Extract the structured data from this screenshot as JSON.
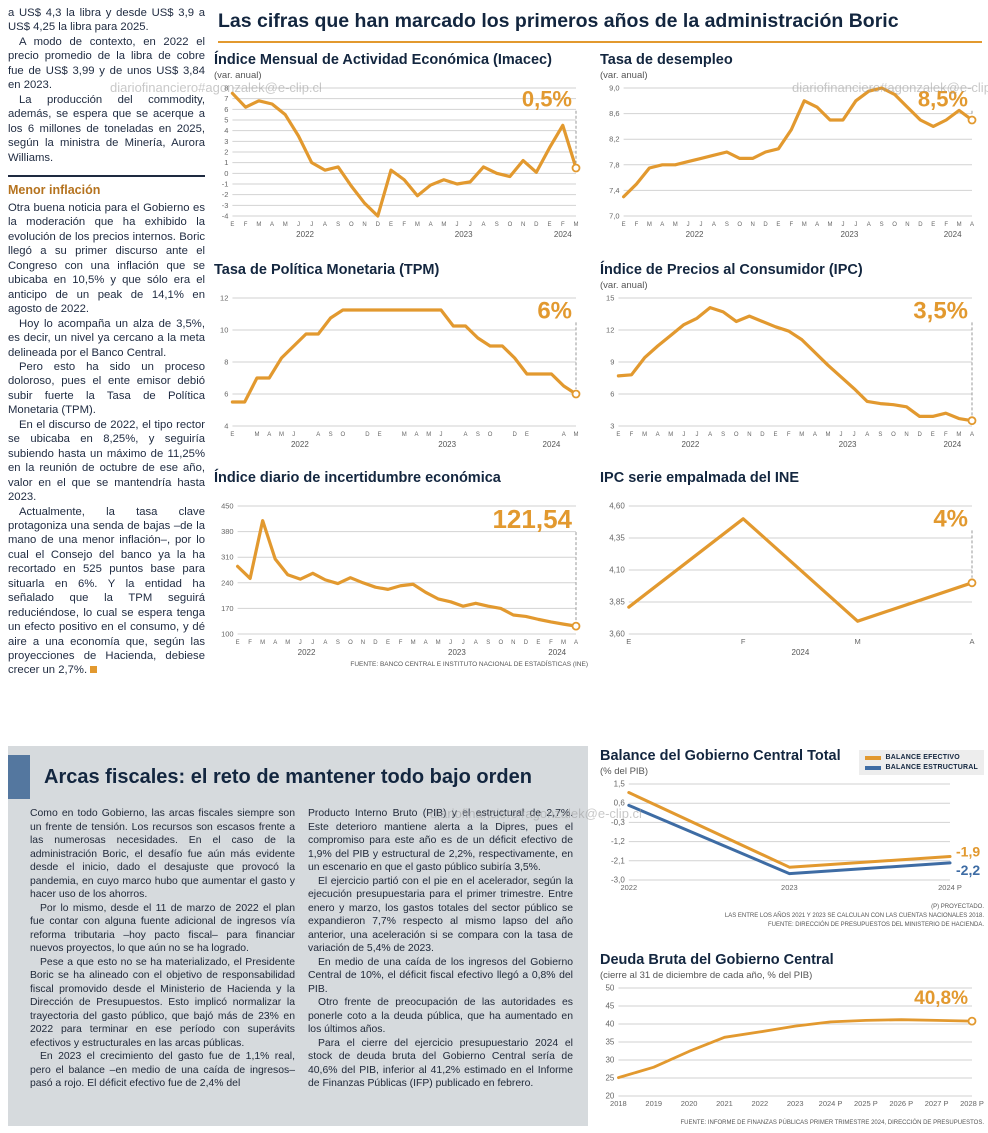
{
  "watermark": "diariofinanciero#agonzalek@e-clip.cl",
  "colors": {
    "accent_orange": "#E2992F",
    "navy": "#13263F",
    "steel_blue": "#3E6CA4",
    "panel_gray": "#D6DADD",
    "subhead_brown": "#B5731F"
  },
  "left_column": {
    "paragraphs": [
      "a US$ 4,3 la libra y desde US$ 3,9 a US$ 4,25 la libra para 2025.",
      "A modo de contexto, en 2022 el precio promedio de la libra de cobre fue de US$ 3,99 y de unos US$ 3,84 en 2023.",
      "La producción del commodity, además, se espera que se acerque a los 6 millones de toneladas en 2025, según la ministra de Minería, Aurora Williams.",
      "Otra buena noticia para el Gobierno es la moderación que ha exhibido la evolución de los precios internos. Boric llegó a su primer discurso ante el Congreso con una inflación que se ubicaba en 10,5% y que sólo era el anticipo de un peak de 14,1% en agosto de 2022.",
      "Hoy lo acompaña un alza de 3,5%, es decir, un nivel ya cercano a la meta delineada por el Banco Central.",
      "Pero esto ha sido un proceso doloroso, pues el ente emisor debió subir fuerte la Tasa de Política Monetaria (TPM).",
      "En el discurso de 2022, el tipo rector se ubicaba en 8,25%, y seguiría subiendo hasta un máximo de 11,25% en la reunión de octubre de ese año, valor en el que se mantendría hasta 2023.",
      "Actualmente, la tasa clave protagoniza una senda de bajas –de la mano de una menor inflación–, por lo cual el Consejo del banco ya la ha recortado en 525 puntos base para situarla en 6%. Y la entidad ha señalado que la TPM seguirá reduciéndose, lo cual se espera tenga un efecto positivo en el consumo, y dé aire a una economía que, según las proyecciones de Hacienda, debiese crecer un 2,7%."
    ],
    "subhead": "Menor inflación"
  },
  "main": {
    "title": "Las cifras que han marcado los primeros años de la administración Boric",
    "source_note": "FUENTE: BANCO CENTRAL E INSTITUTO NACIONAL DE ESTADÍSTICAS (INE)"
  },
  "bottom": {
    "headline": "Arcas fiscales: el reto de mantener todo bajo orden",
    "col1": [
      "Como en todo Gobierno, las arcas fiscales siempre son un frente de tensión. Los recursos son escasos frente a las numerosas necesidades. En el caso de la administración Boric, el desafío fue aún más evidente desde el inicio, dado el desajuste que provocó la pandemia, en cuyo marco hubo que aumentar el gasto y hacer uso de los ahorros.",
      "Por lo mismo, desde el 11 de marzo de 2022 el plan fue contar con alguna fuente adicional de ingresos vía reforma tributaria –hoy pacto fiscal– para financiar nuevos proyectos, lo que aún no se ha logrado.",
      "Pese a que esto no se ha materializado, el Presidente Boric se ha alineado con el objetivo de responsabilidad fiscal promovido desde el Ministerio de Hacienda y la Dirección de Presupuestos. Esto implicó normalizar la trayectoria del gasto público, que bajó más de 23% en 2022 para terminar en ese período con superávits efectivos y estructurales en las arcas públicas.",
      "En 2023 el crecimiento del gasto fue de 1,1% real, pero el balance –en medio de una caída de ingresos– pasó a rojo. El déficit efectivo fue de 2,4% del"
    ],
    "col2": [
      "Producto Interno Bruto (PIB) y el estructural de 2,7%. Este deterioro mantiene alerta a la Dipres, pues el compromiso para este año es de un déficit efectivo de 1,9% del PIB y estructural de 2,2%, respectivamente, en un escenario en que el gasto público subiría 3,5%.",
      "El ejercicio partió con el pie en el acelerador, según la ejecución presupuestaria para el primer trimestre. Entre enero y marzo, los gastos totales del sector público se expandieron 7,7% respecto al mismo lapso del año anterior, una aceleración si se compara con la tasa de variación de 5,4% de 2023.",
      "En medio de una caída de los ingresos del Gobierno Central de 10%, el déficit fiscal efectivo llegó a 0,8% del PIB.",
      "Otro frente de preocupación de las autoridades es ponerle coto a la deuda pública, que ha aumentado en los últimos años.",
      "Para el cierre del ejercicio presupuestario 2024 el stock de deuda bruta del Gobierno Central sería de 40,6% del PIB, inferior al 41,2% estimado en el Informe de Finanzas Públicas (IFP) publicado en febrero."
    ]
  },
  "chart_data": [
    {
      "id": "imacec",
      "type": "line",
      "title": "Índice Mensual de Actividad Económica (Imacec)",
      "subtitle": "(var. anual)",
      "ylim": [
        -4,
        8
      ],
      "yticks": [
        8,
        7,
        6,
        5,
        4,
        3,
        2,
        1,
        0,
        -1,
        -2,
        -3,
        -4
      ],
      "ytick_labels": [
        "8",
        "7",
        "6",
        "5",
        "4",
        "3",
        "2",
        "1",
        "0",
        "-1",
        "-2",
        "-3",
        "-4"
      ],
      "xlabels": [
        "E",
        "F",
        "M",
        "A",
        "M",
        "J",
        "J",
        "A",
        "S",
        "O",
        "N",
        "D",
        "E",
        "F",
        "M",
        "A",
        "M",
        "J",
        "J",
        "A",
        "S",
        "O",
        "N",
        "D",
        "E",
        "F",
        "M"
      ],
      "year_spans": [
        {
          "label": "2022",
          "start": 0,
          "end": 11
        },
        {
          "label": "2023",
          "start": 12,
          "end": 23
        },
        {
          "label": "2024",
          "start": 24,
          "end": 26
        }
      ],
      "stroke": 3.2,
      "series": [
        {
          "name": "Imacec",
          "color": "#E2992F",
          "values": [
            7.5,
            6.2,
            6.8,
            6.5,
            5.5,
            3.5,
            1.0,
            0.3,
            0.6,
            -1.2,
            -2.8,
            -4.0,
            0.3,
            -0.6,
            -2.1,
            -1.1,
            -0.6,
            -1.0,
            -0.8,
            0.6,
            0.0,
            -0.3,
            1.2,
            0.1,
            2.4,
            4.5,
            0.5
          ]
        }
      ],
      "callouts": [
        {
          "series": 0,
          "text": "0,5%",
          "size": 22,
          "pos": "top",
          "dash": true,
          "circle": true
        }
      ]
    },
    {
      "id": "desempleo",
      "type": "line",
      "title": "Tasa de desempleo",
      "subtitle": "(var. anual)",
      "ylim": [
        7.0,
        9.0
      ],
      "yticks": [
        9.0,
        8.6,
        8.2,
        7.8,
        7.4,
        7.0
      ],
      "ytick_labels": [
        "9,0",
        "8,6",
        "8,2",
        "7,8",
        "7,4",
        "7,0"
      ],
      "xlabels": [
        "E",
        "F",
        "M",
        "A",
        "M",
        "J",
        "J",
        "A",
        "S",
        "O",
        "N",
        "D",
        "E",
        "F",
        "M",
        "A",
        "M",
        "J",
        "J",
        "A",
        "S",
        "O",
        "N",
        "D",
        "E",
        "F",
        "M",
        "A"
      ],
      "year_spans": [
        {
          "label": "2022",
          "start": 0,
          "end": 11
        },
        {
          "label": "2023",
          "start": 12,
          "end": 23
        },
        {
          "label": "2024",
          "start": 24,
          "end": 27
        }
      ],
      "stroke": 3.2,
      "series": [
        {
          "name": "Tasa de desempleo",
          "color": "#E2992F",
          "values": [
            7.3,
            7.5,
            7.75,
            7.8,
            7.8,
            7.85,
            7.9,
            7.95,
            8.0,
            7.9,
            7.9,
            8.0,
            8.05,
            8.35,
            8.8,
            8.7,
            8.5,
            8.5,
            8.8,
            8.95,
            9.0,
            8.9,
            8.7,
            8.5,
            8.4,
            8.5,
            8.65,
            8.5
          ]
        }
      ],
      "callouts": [
        {
          "series": 0,
          "text": "8,5%",
          "size": 22,
          "pos": "top",
          "dash": true,
          "circle": true
        }
      ]
    },
    {
      "id": "tpm",
      "type": "line",
      "title": "Tasa de Política Monetaria (TPM)",
      "subtitle": "",
      "ylim": [
        4,
        12
      ],
      "yticks": [
        12,
        10,
        8,
        6,
        4
      ],
      "ytick_labels": [
        "12",
        "10",
        "8",
        "6",
        "4"
      ],
      "xlabels": [
        "E",
        "",
        "M",
        "A",
        "M",
        "J",
        "",
        "A",
        "S",
        "O",
        "",
        "D",
        "E",
        "",
        "M",
        "A",
        "M",
        "J",
        "",
        "A",
        "S",
        "O",
        "",
        "D",
        "E",
        "",
        "",
        "A",
        "M"
      ],
      "year_spans": [
        {
          "label": "2022",
          "start": 0,
          "end": 11
        },
        {
          "label": "2023",
          "start": 12,
          "end": 23
        },
        {
          "label": "2024",
          "start": 24,
          "end": 28
        }
      ],
      "stroke": 3.2,
      "series": [
        {
          "name": "TPM",
          "color": "#E2992F",
          "values": [
            5.5,
            5.5,
            7.0,
            7.0,
            8.25,
            9.0,
            9.75,
            9.75,
            10.75,
            11.25,
            11.25,
            11.25,
            11.25,
            11.25,
            11.25,
            11.25,
            11.25,
            11.25,
            10.25,
            10.25,
            9.5,
            9.0,
            9.0,
            8.25,
            7.25,
            7.25,
            7.25,
            6.5,
            6.0
          ]
        }
      ],
      "callouts": [
        {
          "series": 0,
          "text": "6%",
          "size": 24,
          "pos": "top",
          "dash": true,
          "circle": true
        }
      ]
    },
    {
      "id": "ipc",
      "type": "line",
      "title": "Índice de Precios al Consumidor (IPC)",
      "subtitle": "(var. anual)",
      "ylim": [
        3,
        15
      ],
      "yticks": [
        15,
        12,
        9,
        6,
        3
      ],
      "ytick_labels": [
        "15",
        "12",
        "9",
        "6",
        "3"
      ],
      "xlabels": [
        "E",
        "F",
        "M",
        "A",
        "M",
        "J",
        "J",
        "A",
        "S",
        "O",
        "N",
        "D",
        "E",
        "F",
        "M",
        "A",
        "M",
        "J",
        "J",
        "A",
        "S",
        "O",
        "N",
        "D",
        "E",
        "F",
        "M",
        "A"
      ],
      "year_spans": [
        {
          "label": "2022",
          "start": 0,
          "end": 11
        },
        {
          "label": "2023",
          "start": 12,
          "end": 23
        },
        {
          "label": "2024",
          "start": 24,
          "end": 27
        }
      ],
      "stroke": 3.2,
      "series": [
        {
          "name": "IPC",
          "color": "#E2992F",
          "values": [
            7.7,
            7.8,
            9.4,
            10.5,
            11.5,
            12.5,
            13.1,
            14.1,
            13.7,
            12.8,
            13.3,
            12.8,
            12.3,
            11.9,
            11.1,
            9.9,
            8.7,
            7.6,
            6.5,
            5.3,
            5.1,
            5.0,
            4.8,
            3.9,
            3.9,
            4.2,
            3.7,
            3.5
          ]
        }
      ],
      "callouts": [
        {
          "series": 0,
          "text": "3,5%",
          "size": 24,
          "pos": "top",
          "dash": true,
          "circle": true
        }
      ]
    },
    {
      "id": "incertidumbre",
      "type": "line",
      "title": "Índice diario de incertidumbre económica",
      "subtitle": "",
      "ylim": [
        100,
        450
      ],
      "yticks": [
        450,
        380,
        310,
        240,
        170,
        100
      ],
      "ytick_labels": [
        "450",
        "380",
        "310",
        "240",
        "170",
        "100"
      ],
      "xlabels": [
        "E",
        "F",
        "M",
        "A",
        "M",
        "J",
        "J",
        "A",
        "S",
        "O",
        "N",
        "D",
        "E",
        "F",
        "M",
        "A",
        "M",
        "J",
        "J",
        "A",
        "S",
        "O",
        "N",
        "D",
        "E",
        "F",
        "M",
        "A"
      ],
      "year_spans": [
        {
          "label": "2022",
          "start": 0,
          "end": 11
        },
        {
          "label": "2023",
          "start": 12,
          "end": 23
        },
        {
          "label": "2024",
          "start": 24,
          "end": 27
        }
      ],
      "stroke": 3.2,
      "series": [
        {
          "name": "Incertidumbre económica",
          "color": "#E2992F",
          "values": [
            285,
            252,
            410,
            305,
            262,
            250,
            266,
            248,
            238,
            254,
            240,
            228,
            222,
            232,
            236,
            214,
            196,
            188,
            176,
            184,
            176,
            170,
            152,
            148,
            140,
            133,
            127,
            121.54
          ]
        }
      ],
      "callouts": [
        {
          "series": 0,
          "text": "121,54",
          "size": 26,
          "pos": "top",
          "dash": true,
          "circle": true
        }
      ]
    },
    {
      "id": "ipc-empalmada",
      "type": "line",
      "title": "IPC serie empalmada del INE",
      "subtitle": "",
      "ylim": [
        3.6,
        4.6
      ],
      "yticks": [
        4.6,
        4.35,
        4.1,
        3.85,
        3.6
      ],
      "ytick_labels": [
        "4,60",
        "4,35",
        "4,10",
        "3,85",
        "3,60"
      ],
      "xlabels": [
        "E",
        "F",
        "M",
        "A"
      ],
      "year_spans": [
        {
          "label": "2024",
          "start": 0,
          "end": 3
        }
      ],
      "stroke": 3.2,
      "series": [
        {
          "name": "IPC serie empalmada",
          "color": "#E2992F",
          "values": [
            3.81,
            4.5,
            3.7,
            4.0
          ]
        }
      ],
      "callouts": [
        {
          "series": 0,
          "text": "4%",
          "size": 24,
          "pos": "top",
          "dash": true,
          "circle": true
        }
      ]
    },
    {
      "id": "balance",
      "type": "line",
      "title": "Balance del Gobierno Central Total",
      "subtitle": "(% del PIB)",
      "ylim": [
        -3.0,
        1.5
      ],
      "yticks": [
        1.5,
        0.6,
        -0.3,
        -1.2,
        -2.1,
        -3.0
      ],
      "ytick_labels": [
        "1,5",
        "0,6",
        "-0,3",
        "-1,2",
        "-2,1",
        "-3,0"
      ],
      "xlabels": [
        "2022",
        "2023",
        "2024 P"
      ],
      "stroke": 3,
      "series": [
        {
          "name": "BALANCE EFECTIVO",
          "color": "#E2992F",
          "values": [
            1.1,
            -2.4,
            -1.9
          ]
        },
        {
          "name": "BALANCE ESTRUCTURAL",
          "color": "#3E6CA4",
          "values": [
            0.5,
            -2.7,
            -2.2
          ]
        }
      ],
      "legend": [
        {
          "label": "BALANCE EFECTIVO",
          "color": "#E2992F"
        },
        {
          "label": "BALANCE ESTRUCTURAL",
          "color": "#3E6CA4"
        }
      ],
      "callouts": [
        {
          "series": 0,
          "text": "-1,9",
          "size": 14,
          "pos": "right",
          "dy": -3
        },
        {
          "series": 1,
          "text": "-2,2",
          "size": 14,
          "pos": "right",
          "dy": 9
        }
      ],
      "footnotes": [
        "(P) PROYECTADO.",
        "LAS ENTRE LOS AÑOS 2021 Y 2023 SE CALCULAN CON LAS CUENTAS NACIONALES 2018.",
        "FUENTE: DIRECCIÓN DE PRESUPUESTOS DEL MINISTERIO DE HACIENDA."
      ]
    },
    {
      "id": "deuda",
      "type": "line",
      "title": "Deuda Bruta del Gobierno Central",
      "subtitle": "(cierre al 31 de diciembre de cada año, % del PIB)",
      "ylim": [
        20,
        50
      ],
      "yticks": [
        50,
        45,
        40,
        35,
        30,
        25,
        20
      ],
      "ytick_labels": [
        "50",
        "45",
        "40",
        "35",
        "30",
        "25",
        "20"
      ],
      "xlabels": [
        "2018",
        "2019",
        "2020",
        "2021",
        "2022",
        "2023",
        "2024 P",
        "2025 P",
        "2026 P",
        "2027 P",
        "2028 P"
      ],
      "stroke": 2.8,
      "series": [
        {
          "name": "Deuda bruta",
          "color": "#E2992F",
          "values": [
            25.1,
            28.0,
            32.4,
            36.3,
            37.8,
            39.4,
            40.6,
            41.0,
            41.2,
            41.0,
            40.8
          ]
        }
      ],
      "callouts": [
        {
          "series": 0,
          "text": "40,8%",
          "size": 19,
          "pos": "top",
          "dash": false,
          "circle": true
        }
      ],
      "footnotes": [
        "FUENTE: INFORME DE FINANZAS PÚBLICAS PRIMER TRIMESTRE 2024, DIRECCIÓN DE PRESUPUESTOS."
      ]
    }
  ]
}
